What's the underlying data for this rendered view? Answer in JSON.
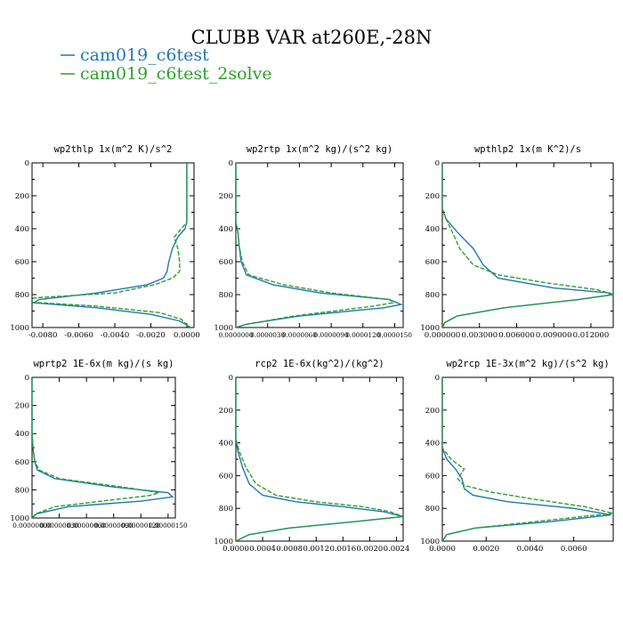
{
  "figure_title": "CLUBB VAR at260E,-28N",
  "legend": [
    {
      "label": "cam019_c6test",
      "color": "#1f77b4",
      "dash": "solid"
    },
    {
      "label": "cam019_c6test_2solve",
      "color": "#2ca02c",
      "dash": "dashed"
    }
  ],
  "chart_data": [
    {
      "type": "line",
      "title": "wp2thlp   1x(m^2 K)/s^2",
      "ylim": [
        1000,
        0
      ],
      "yticks": [
        "0",
        "200",
        "400",
        "600",
        "800",
        "1000"
      ],
      "xlim": [
        -0.0086,
        0.0004
      ],
      "xticks": [
        -0.008,
        -0.006,
        -0.004,
        -0.002,
        0.0
      ],
      "xtick_labels": [
        "-0.0080",
        "-0.0060",
        "-0.0040",
        "-0.0020",
        "0.0000"
      ],
      "series": [
        {
          "name": "cam019_c6test",
          "x": [
            0.0,
            0.0,
            0.0,
            -0.0001,
            -0.0005,
            -0.0008,
            -0.001,
            -0.0011,
            -0.0013,
            -0.0022,
            -0.005,
            -0.0082,
            -0.0085,
            -0.005,
            -0.002,
            -0.0004,
            0.0,
            0.0002
          ],
          "y": [
            0,
            300,
            360,
            400,
            450,
            520,
            600,
            660,
            700,
            740,
            790,
            830,
            850,
            880,
            920,
            960,
            985,
            1000
          ]
        },
        {
          "name": "cam019_c6test_2solve",
          "x": [
            0.0,
            0.0,
            0.0,
            -0.0003,
            -0.0007,
            -0.0005,
            -0.0004,
            -0.0004,
            -0.0008,
            -0.0018,
            -0.004,
            -0.0085,
            -0.0088,
            -0.005,
            -0.0015,
            -0.0003,
            0.0,
            0.0002
          ],
          "y": [
            0,
            300,
            360,
            400,
            450,
            520,
            600,
            660,
            700,
            740,
            790,
            820,
            845,
            870,
            910,
            950,
            985,
            1000
          ]
        }
      ]
    },
    {
      "type": "line",
      "title": "wp2rtp   1x(m^2 kg)/(s^2 kg)",
      "ylim": [
        1000,
        0
      ],
      "yticks": [
        "0",
        "200",
        "400",
        "600",
        "800",
        "1000"
      ],
      "xlim": [
        0.0,
        1.58e-05
      ],
      "xticks": [
        0.0,
        3e-06,
        6e-06,
        9e-06,
        1.2e-05,
        1.5e-05
      ],
      "xtick_labels": [
        "0.0000000",
        "0.0000030",
        "0.0000060",
        "0.0000090",
        "0.0000120",
        "0.0000150"
      ],
      "series": [
        {
          "name": "cam019_c6test",
          "x": [
            0.0,
            0.0,
            2e-07,
            3e-07,
            5e-07,
            1e-06,
            3.5e-06,
            8e-06,
            1.45e-05,
            1.56e-05,
            1.4e-05,
            6e-06,
            1e-06,
            0.0
          ],
          "y": [
            0,
            360,
            420,
            500,
            600,
            680,
            740,
            790,
            830,
            860,
            880,
            930,
            980,
            1000
          ]
        },
        {
          "name": "cam019_c6test_2solve",
          "x": [
            0.0,
            0.0,
            2e-07,
            3e-07,
            6e-07,
            1.2e-06,
            4.5e-06,
            9e-06,
            1.45e-05,
            1.48e-05,
            1.3e-05,
            5.5e-06,
            1e-06,
            0.0
          ],
          "y": [
            0,
            360,
            420,
            500,
            600,
            680,
            740,
            790,
            830,
            850,
            870,
            930,
            980,
            1000
          ]
        }
      ]
    },
    {
      "type": "line",
      "title": "wpthlp2   1x(m K^2)/s",
      "ylim": [
        1000,
        0
      ],
      "yticks": [
        "0",
        "200",
        "400",
        "600",
        "800",
        "1000"
      ],
      "xlim": [
        0.0,
        0.0138
      ],
      "xticks": [
        0.0,
        0.003,
        0.006,
        0.009,
        0.012
      ],
      "xtick_labels": [
        "0.000000",
        "0.003000",
        "0.006000",
        "0.009000",
        "0.012000"
      ],
      "series": [
        {
          "name": "cam019_c6test",
          "x": [
            0.0,
            0.0,
            0.0003,
            0.0012,
            0.0025,
            0.0033,
            0.0045,
            0.009,
            0.0135,
            0.0138,
            0.011,
            0.005,
            0.0012,
            0.0002,
            0.0
          ],
          "y": [
            0,
            280,
            340,
            420,
            520,
            620,
            700,
            760,
            790,
            800,
            830,
            880,
            930,
            970,
            1000
          ]
        },
        {
          "name": "cam019_c6test_2solve",
          "x": [
            0.0,
            0.0,
            0.0003,
            0.0008,
            0.0014,
            0.0025,
            0.0045,
            0.0085,
            0.0125,
            0.0138,
            0.011,
            0.005,
            0.0012,
            0.0002,
            0.0
          ],
          "y": [
            0,
            280,
            340,
            420,
            520,
            620,
            680,
            730,
            770,
            800,
            830,
            880,
            930,
            970,
            1000
          ]
        }
      ]
    },
    {
      "type": "line",
      "title": "wprtp2   1E-6x(m kg)/(s kg)",
      "ylim": [
        1000,
        0
      ],
      "yticks": [
        "0",
        "200",
        "400",
        "600",
        "800",
        "1000"
      ],
      "xlim": [
        0.0,
        1.58e-06
      ],
      "xticks": [
        0.0,
        3e-07,
        6e-07,
        9e-07,
        1.2e-06,
        1.5e-06
      ],
      "xtick_labels": [
        "0.00000000",
        "0.00000030",
        "0.00000060",
        "0.00000090",
        "0.00000120",
        "0.00000150"
      ],
      "series": [
        {
          "name": "cam019_c6test",
          "x": [
            0.0,
            0.0,
            1e-08,
            3e-08,
            6e-08,
            2.5e-07,
            9e-07,
            1.5e-06,
            1.55e-06,
            1.2e-06,
            4e-07,
            5e-08,
            0.0
          ],
          "y": [
            0,
            400,
            500,
            600,
            660,
            720,
            780,
            820,
            850,
            880,
            920,
            970,
            1000
          ]
        },
        {
          "name": "cam019_c6test_2solve",
          "x": [
            0.0,
            0.0,
            1e-08,
            3e-08,
            8e-08,
            3e-07,
            1e-06,
            1.4e-06,
            1.3e-06,
            9e-07,
            2.5e-07,
            4e-08,
            0.0
          ],
          "y": [
            0,
            400,
            500,
            600,
            660,
            720,
            780,
            820,
            840,
            870,
            920,
            970,
            1000
          ]
        }
      ]
    },
    {
      "type": "line",
      "title": "rcp2   1E-6x(kg^2)/(kg^2)",
      "ylim": [
        1000,
        0
      ],
      "yticks": [
        "0",
        "200",
        "400",
        "600",
        "800",
        "1000"
      ],
      "xlim": [
        0.0,
        0.0025
      ],
      "xticks": [
        0.0,
        0.0004,
        0.0008,
        0.0012,
        0.0016,
        0.002,
        0.0024
      ],
      "xtick_labels": [
        "0.0000",
        "0.0004",
        "0.0008",
        "0.0012",
        "0.0016",
        "0.0020",
        "0.0024"
      ],
      "series": [
        {
          "name": "cam019_c6test",
          "x": [
            0.0,
            0.0,
            3e-05,
            0.0001,
            0.0002,
            0.0004,
            0.0009,
            0.0016,
            0.0022,
            0.0025,
            0.0018,
            0.0008,
            0.0002,
            0.0
          ],
          "y": [
            0,
            380,
            450,
            550,
            650,
            720,
            760,
            790,
            820,
            850,
            880,
            920,
            960,
            1000
          ]
        },
        {
          "name": "cam019_c6test_2solve",
          "x": [
            0.0,
            0.0,
            5e-05,
            0.00015,
            0.0003,
            0.0006,
            0.0012,
            0.0019,
            0.0023,
            0.0025,
            0.0018,
            0.0008,
            0.0002,
            0.0
          ],
          "y": [
            0,
            380,
            450,
            550,
            650,
            720,
            760,
            790,
            820,
            850,
            880,
            920,
            960,
            1000
          ]
        }
      ]
    },
    {
      "type": "line",
      "title": "wp2rcp   1E-3x(m^2 kg)/(s^2 kg)",
      "ylim": [
        1000,
        0
      ],
      "yticks": [
        "0",
        "200",
        "400",
        "600",
        "800",
        "1000"
      ],
      "xlim": [
        0.0,
        0.0078
      ],
      "xticks": [
        0.0,
        0.002,
        0.004,
        0.006
      ],
      "xtick_labels": [
        "0.0000",
        "0.0020",
        "0.0040",
        "0.0060"
      ],
      "series": [
        {
          "name": "cam019_c6test",
          "x": [
            0.0,
            0.0,
            0.0002,
            0.0006,
            0.0009,
            0.001,
            0.0014,
            0.003,
            0.006,
            0.0077,
            0.005,
            0.0015,
            0.0002,
            0.0
          ],
          "y": [
            0,
            430,
            500,
            560,
            620,
            680,
            720,
            760,
            800,
            840,
            880,
            920,
            960,
            1000
          ]
        },
        {
          "name": "cam019_c6test_2solve",
          "x": [
            0.0,
            0.0,
            0.0004,
            0.001,
            0.0007,
            0.001,
            0.0022,
            0.004,
            0.0065,
            0.0078,
            0.005,
            0.0015,
            0.0002,
            0.0
          ],
          "y": [
            0,
            430,
            500,
            560,
            620,
            660,
            700,
            740,
            790,
            830,
            870,
            920,
            960,
            1000
          ]
        }
      ]
    }
  ]
}
